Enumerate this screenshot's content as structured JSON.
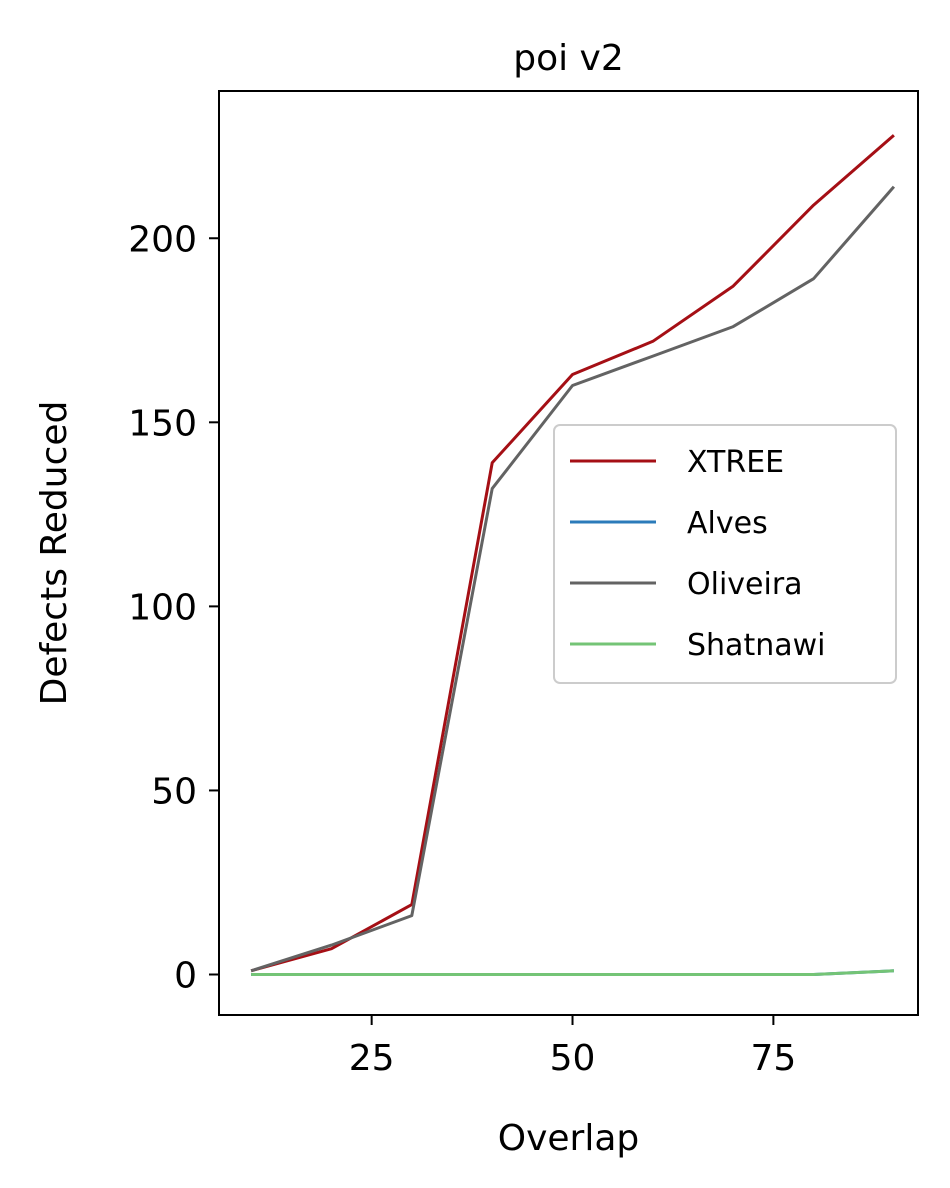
{
  "chart_data": {
    "type": "line",
    "title": "poi v2",
    "xlabel": "Overlap",
    "ylabel": "Defects Reduced",
    "x": [
      10,
      20,
      30,
      40,
      50,
      60,
      70,
      80,
      90
    ],
    "xlim": [
      6,
      93
    ],
    "ylim": [
      -11,
      240
    ],
    "xticks": [
      25,
      50,
      75
    ],
    "yticks": [
      0,
      50,
      100,
      150,
      200
    ],
    "grid": false,
    "legend_position": "center-right",
    "series": [
      {
        "name": "XTREE",
        "color": "#a50f15",
        "values": [
          1,
          7,
          19,
          139,
          163,
          172,
          187,
          209,
          228
        ]
      },
      {
        "name": "Alves",
        "color": "#2b7bba",
        "values": [
          0,
          0,
          0,
          0,
          0,
          0,
          0,
          0,
          1
        ]
      },
      {
        "name": "Oliveira",
        "color": "#636363",
        "values": [
          1,
          8,
          16,
          132,
          160,
          168,
          176,
          189,
          214
        ]
      },
      {
        "name": "Shatnawi",
        "color": "#74c476",
        "values": [
          0,
          0,
          0,
          0,
          0,
          0,
          0,
          0,
          1
        ]
      }
    ]
  }
}
